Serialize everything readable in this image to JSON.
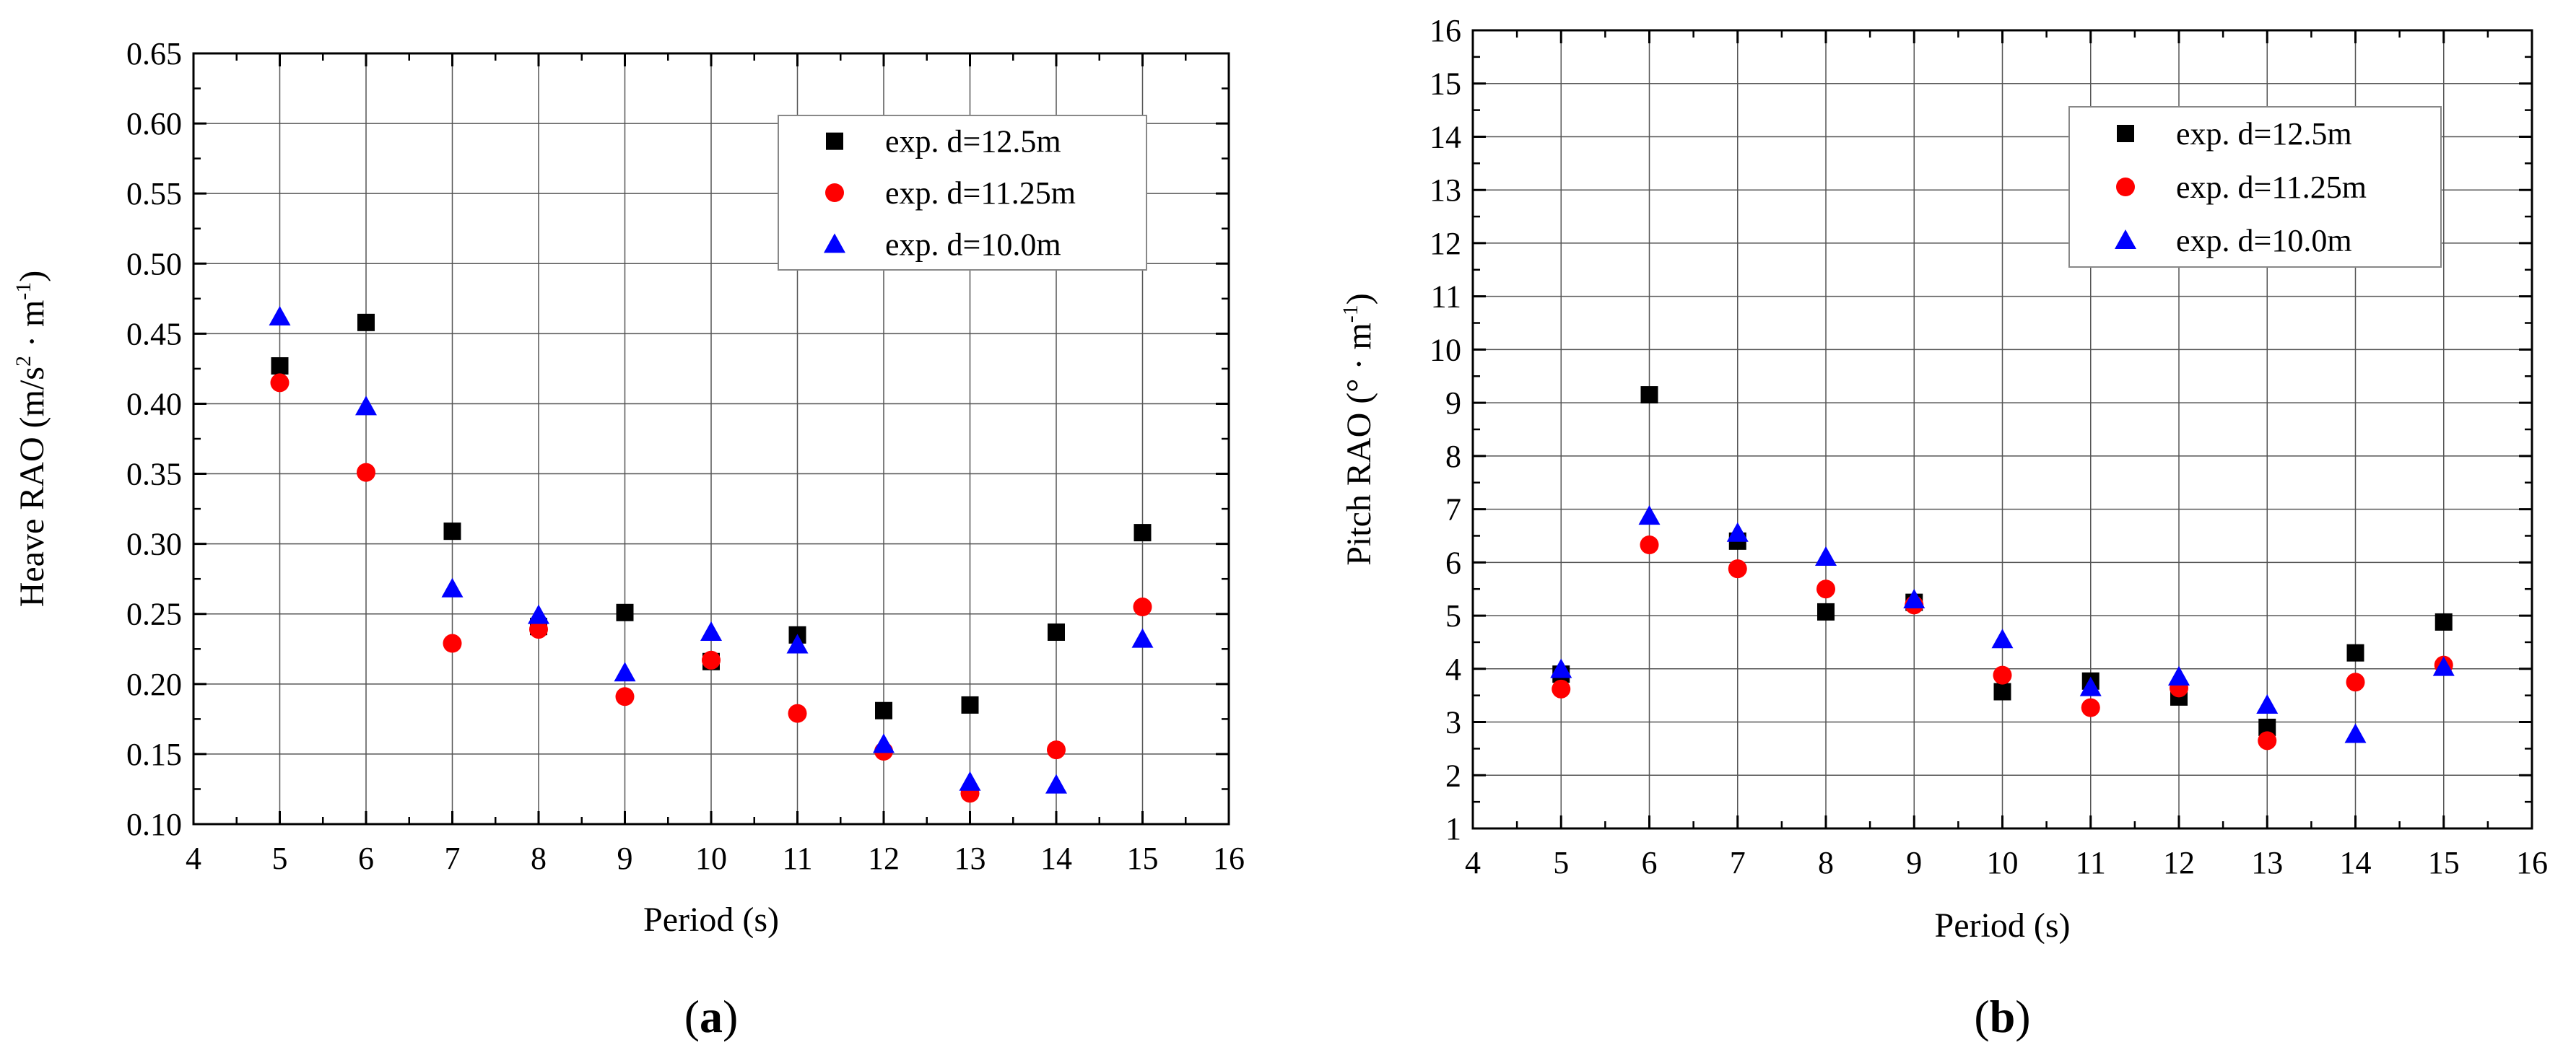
{
  "chart_data": [
    {
      "type": "scatter",
      "panel_label": "a",
      "xlabel": "Period (s)",
      "ylabel": {
        "prefix": "Heave RAO (m/s",
        "sup1": "2",
        "mid": " · m",
        "sup2": "-1",
        "suffix": ")"
      },
      "xlim": [
        4,
        16
      ],
      "ylim": [
        0.1,
        0.65
      ],
      "x_ticks": [
        "4",
        "5",
        "6",
        "7",
        "8",
        "9",
        "10",
        "11",
        "12",
        "13",
        "14",
        "15",
        "16"
      ],
      "y_ticks": [
        "0.10",
        "0.15",
        "0.20",
        "0.25",
        "0.30",
        "0.35",
        "0.40",
        "0.45",
        "0.50",
        "0.55",
        "0.60",
        "0.65"
      ],
      "grid": true,
      "legend_position": "top-right",
      "series": [
        {
          "name": "exp. d=12.5m",
          "marker": "square",
          "color": "#000000",
          "x": [
            5,
            6,
            7,
            8,
            9,
            10,
            11,
            12,
            13,
            14,
            15
          ],
          "y": [
            0.427,
            0.458,
            0.309,
            0.241,
            0.251,
            0.216,
            0.235,
            0.181,
            0.185,
            0.237,
            0.308
          ]
        },
        {
          "name": "exp. d=11.25m",
          "marker": "circle",
          "color": "#ff0000",
          "x": [
            5,
            6,
            7,
            8,
            9,
            10,
            11,
            12,
            13,
            14,
            15
          ],
          "y": [
            0.415,
            0.351,
            0.229,
            0.239,
            0.191,
            0.217,
            0.179,
            0.152,
            0.122,
            0.153,
            0.255
          ]
        },
        {
          "name": "exp. d=10.0m",
          "marker": "triangle",
          "color": "#0000ff",
          "x": [
            5,
            6,
            7,
            8,
            9,
            10,
            11,
            12,
            13,
            14,
            15
          ],
          "y": [
            0.462,
            0.398,
            0.268,
            0.249,
            0.208,
            0.237,
            0.228,
            0.157,
            0.13,
            0.128,
            0.232
          ]
        }
      ]
    },
    {
      "type": "scatter",
      "panel_label": "b",
      "xlabel": "Period (s)",
      "ylabel": {
        "prefix": "Pitch RAO (° · m",
        "sup1": "-1",
        "suffix": ")"
      },
      "xlim": [
        4,
        16
      ],
      "ylim": [
        1,
        16
      ],
      "x_ticks": [
        "4",
        "5",
        "6",
        "7",
        "8",
        "9",
        "10",
        "11",
        "12",
        "13",
        "14",
        "15",
        "16"
      ],
      "y_ticks": [
        "1",
        "2",
        "3",
        "4",
        "5",
        "6",
        "7",
        "8",
        "9",
        "10",
        "11",
        "12",
        "13",
        "14",
        "15",
        "16"
      ],
      "grid": true,
      "legend_position": "top-right",
      "series": [
        {
          "name": "exp. d=12.5m",
          "marker": "square",
          "color": "#000000",
          "x": [
            5,
            6,
            7,
            8,
            9,
            10,
            11,
            12,
            13,
            14,
            15
          ],
          "y": [
            3.9,
            9.15,
            6.4,
            5.07,
            5.25,
            3.57,
            3.77,
            3.47,
            2.9,
            4.3,
            4.88
          ]
        },
        {
          "name": "exp. d=11.25m",
          "marker": "circle",
          "color": "#ff0000",
          "x": [
            5,
            6,
            7,
            8,
            9,
            10,
            11,
            12,
            13,
            14,
            15
          ],
          "y": [
            3.62,
            6.33,
            5.88,
            5.5,
            5.2,
            3.88,
            3.27,
            3.64,
            2.65,
            3.75,
            4.07
          ]
        },
        {
          "name": "exp. d=10.0m",
          "marker": "triangle",
          "color": "#0000ff",
          "x": [
            5,
            6,
            7,
            8,
            9,
            10,
            11,
            12,
            13,
            14,
            15
          ],
          "y": [
            3.99,
            6.87,
            6.55,
            6.1,
            5.3,
            4.55,
            3.65,
            3.85,
            3.32,
            2.77,
            4.03
          ]
        }
      ]
    }
  ]
}
